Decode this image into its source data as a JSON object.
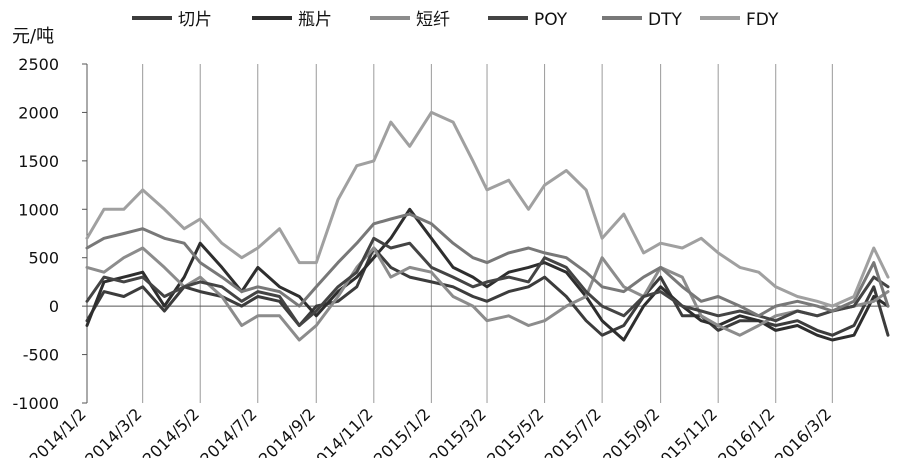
{
  "chart_data": {
    "type": "line",
    "title": "",
    "unit_label": "元/吨",
    "xlabel": "",
    "ylabel": "",
    "ylim": [
      -1000,
      2500
    ],
    "yticks": [
      -1000,
      -500,
      0,
      500,
      1000,
      1500,
      2000,
      2500
    ],
    "ytick_labels": [
      "-1000",
      "-500",
      "0",
      "500",
      "1000",
      "1500",
      "2000",
      "2500"
    ],
    "x_range": [
      "2014/1/2",
      "2016/4/30"
    ],
    "xtick_labels": [
      "2014/1/2",
      "2014/3/2",
      "2014/5/2",
      "2014/7/2",
      "2014/9/2",
      "2014/11/2",
      "2015/1/2",
      "2015/3/2",
      "2015/5/2",
      "2015/7/2",
      "2015/9/2",
      "2015/11/2",
      "2016/1/2",
      "2016/3/2"
    ],
    "grid": "vertical",
    "legend_position": "top",
    "series": [
      {
        "name": "切片",
        "color": "#3c3c3c",
        "points": [
          [
            "2014/1/2",
            -150
          ],
          [
            "2014/1/20",
            150
          ],
          [
            "2014/2/10",
            100
          ],
          [
            "2014/3/2",
            200
          ],
          [
            "2014/3/25",
            -50
          ],
          [
            "2014/4/15",
            200
          ],
          [
            "2014/5/2",
            150
          ],
          [
            "2014/5/25",
            100
          ],
          [
            "2014/6/15",
            0
          ],
          [
            "2014/7/2",
            100
          ],
          [
            "2014/7/25",
            50
          ],
          [
            "2014/8/15",
            -200
          ],
          [
            "2014/9/2",
            0
          ],
          [
            "2014/9/25",
            50
          ],
          [
            "2014/10/15",
            200
          ],
          [
            "2014/11/2",
            600
          ],
          [
            "2014/11/20",
            400
          ],
          [
            "2014/12/10",
            300
          ],
          [
            "2015/1/2",
            250
          ],
          [
            "2015/1/25",
            200
          ],
          [
            "2015/2/15",
            100
          ],
          [
            "2015/3/2",
            50
          ],
          [
            "2015/3/25",
            150
          ],
          [
            "2015/4/15",
            200
          ],
          [
            "2015/5/2",
            300
          ],
          [
            "2015/5/25",
            100
          ],
          [
            "2015/6/15",
            -150
          ],
          [
            "2015/7/2",
            -300
          ],
          [
            "2015/7/25",
            -200
          ],
          [
            "2015/8/15",
            100
          ],
          [
            "2015/9/2",
            300
          ],
          [
            "2015/9/25",
            -100
          ],
          [
            "2015/10/15",
            -100
          ],
          [
            "2015/11/2",
            -250
          ],
          [
            "2015/11/25",
            -150
          ],
          [
            "2015/12/15",
            -150
          ],
          [
            "2016/1/2",
            -200
          ],
          [
            "2016/1/25",
            -150
          ],
          [
            "2016/2/15",
            -250
          ],
          [
            "2016/3/2",
            -300
          ],
          [
            "2016/3/25",
            -200
          ],
          [
            "2016/4/15",
            200
          ],
          [
            "2016/4/30",
            -300
          ]
        ]
      },
      {
        "name": "瓶片",
        "color": "#2e2e2e",
        "points": [
          [
            "2014/1/2",
            -200
          ],
          [
            "2014/1/20",
            250
          ],
          [
            "2014/2/10",
            300
          ],
          [
            "2014/3/2",
            350
          ],
          [
            "2014/3/25",
            0
          ],
          [
            "2014/4/15",
            300
          ],
          [
            "2014/5/2",
            650
          ],
          [
            "2014/5/25",
            400
          ],
          [
            "2014/6/15",
            150
          ],
          [
            "2014/7/2",
            400
          ],
          [
            "2014/7/25",
            200
          ],
          [
            "2014/8/15",
            100
          ],
          [
            "2014/9/2",
            -100
          ],
          [
            "2014/9/25",
            150
          ],
          [
            "2014/10/15",
            300
          ],
          [
            "2014/11/2",
            500
          ],
          [
            "2014/11/20",
            700
          ],
          [
            "2014/12/10",
            1000
          ],
          [
            "2015/1/2",
            700
          ],
          [
            "2015/1/25",
            400
          ],
          [
            "2015/2/15",
            300
          ],
          [
            "2015/3/2",
            200
          ],
          [
            "2015/3/25",
            350
          ],
          [
            "2015/4/15",
            400
          ],
          [
            "2015/5/2",
            450
          ],
          [
            "2015/5/25",
            350
          ],
          [
            "2015/6/15",
            100
          ],
          [
            "2015/7/2",
            -150
          ],
          [
            "2015/7/25",
            -350
          ],
          [
            "2015/8/15",
            0
          ],
          [
            "2015/9/2",
            200
          ],
          [
            "2015/9/25",
            0
          ],
          [
            "2015/10/15",
            -150
          ],
          [
            "2015/11/2",
            -200
          ],
          [
            "2015/11/25",
            -100
          ],
          [
            "2015/12/15",
            -150
          ],
          [
            "2016/1/2",
            -250
          ],
          [
            "2016/1/25",
            -200
          ],
          [
            "2016/2/15",
            -300
          ],
          [
            "2016/3/2",
            -350
          ],
          [
            "2016/3/25",
            -300
          ],
          [
            "2016/4/15",
            100
          ],
          [
            "2016/4/30",
            0
          ]
        ]
      },
      {
        "name": "短纤",
        "color": "#8c8c8c",
        "points": [
          [
            "2014/1/2",
            400
          ],
          [
            "2014/1/20",
            350
          ],
          [
            "2014/2/10",
            500
          ],
          [
            "2014/3/2",
            600
          ],
          [
            "2014/3/25",
            400
          ],
          [
            "2014/4/15",
            200
          ],
          [
            "2014/5/2",
            300
          ],
          [
            "2014/5/25",
            100
          ],
          [
            "2014/6/15",
            -200
          ],
          [
            "2014/7/2",
            -100
          ],
          [
            "2014/7/25",
            -100
          ],
          [
            "2014/8/15",
            -350
          ],
          [
            "2014/9/2",
            -200
          ],
          [
            "2014/9/25",
            100
          ],
          [
            "2014/10/15",
            400
          ],
          [
            "2014/11/2",
            600
          ],
          [
            "2014/11/20",
            300
          ],
          [
            "2014/12/10",
            400
          ],
          [
            "2015/1/2",
            350
          ],
          [
            "2015/1/25",
            100
          ],
          [
            "2015/2/15",
            0
          ],
          [
            "2015/3/2",
            -150
          ],
          [
            "2015/3/25",
            -100
          ],
          [
            "2015/4/15",
            -200
          ],
          [
            "2015/5/2",
            -150
          ],
          [
            "2015/5/25",
            0
          ],
          [
            "2015/6/15",
            100
          ],
          [
            "2015/7/2",
            500
          ],
          [
            "2015/7/25",
            200
          ],
          [
            "2015/8/15",
            100
          ],
          [
            "2015/9/2",
            400
          ],
          [
            "2015/9/25",
            300
          ],
          [
            "2015/10/15",
            -100
          ],
          [
            "2015/11/2",
            -200
          ],
          [
            "2015/11/25",
            -300
          ],
          [
            "2015/12/15",
            -200
          ],
          [
            "2016/1/2",
            -100
          ],
          [
            "2016/1/25",
            -50
          ],
          [
            "2016/2/15",
            -100
          ],
          [
            "2016/3/2",
            -50
          ],
          [
            "2016/3/25",
            0
          ],
          [
            "2016/4/15",
            50
          ],
          [
            "2016/4/30",
            150
          ]
        ]
      },
      {
        "name": "POY",
        "color": "#444444",
        "points": [
          [
            "2014/1/2",
            50
          ],
          [
            "2014/1/20",
            300
          ],
          [
            "2014/2/10",
            250
          ],
          [
            "2014/3/2",
            300
          ],
          [
            "2014/3/25",
            100
          ],
          [
            "2014/4/15",
            200
          ],
          [
            "2014/5/2",
            250
          ],
          [
            "2014/5/25",
            200
          ],
          [
            "2014/6/15",
            50
          ],
          [
            "2014/7/2",
            150
          ],
          [
            "2014/7/25",
            100
          ],
          [
            "2014/8/15",
            -200
          ],
          [
            "2014/9/2",
            -50
          ],
          [
            "2014/9/25",
            200
          ],
          [
            "2014/10/15",
            350
          ],
          [
            "2014/11/2",
            700
          ],
          [
            "2014/11/20",
            600
          ],
          [
            "2014/12/10",
            650
          ],
          [
            "2015/1/2",
            400
          ],
          [
            "2015/1/25",
            300
          ],
          [
            "2015/2/15",
            200
          ],
          [
            "2015/3/2",
            250
          ],
          [
            "2015/3/25",
            300
          ],
          [
            "2015/4/15",
            250
          ],
          [
            "2015/5/2",
            500
          ],
          [
            "2015/5/25",
            400
          ],
          [
            "2015/6/15",
            150
          ],
          [
            "2015/7/2",
            0
          ],
          [
            "2015/7/25",
            -100
          ],
          [
            "2015/8/15",
            100
          ],
          [
            "2015/9/2",
            150
          ],
          [
            "2015/9/25",
            0
          ],
          [
            "2015/10/15",
            -50
          ],
          [
            "2015/11/2",
            -100
          ],
          [
            "2015/11/25",
            -50
          ],
          [
            "2015/12/15",
            -100
          ],
          [
            "2016/1/2",
            -150
          ],
          [
            "2016/1/25",
            -50
          ],
          [
            "2016/2/15",
            -100
          ],
          [
            "2016/3/2",
            -50
          ],
          [
            "2016/3/25",
            0
          ],
          [
            "2016/4/15",
            300
          ],
          [
            "2016/4/30",
            200
          ]
        ]
      },
      {
        "name": "DTY",
        "color": "#787878",
        "points": [
          [
            "2014/1/2",
            600
          ],
          [
            "2014/1/20",
            700
          ],
          [
            "2014/2/10",
            750
          ],
          [
            "2014/3/2",
            800
          ],
          [
            "2014/3/25",
            700
          ],
          [
            "2014/4/15",
            650
          ],
          [
            "2014/5/2",
            450
          ],
          [
            "2014/5/25",
            300
          ],
          [
            "2014/6/15",
            150
          ],
          [
            "2014/7/2",
            200
          ],
          [
            "2014/7/25",
            150
          ],
          [
            "2014/8/15",
            0
          ],
          [
            "2014/9/2",
            200
          ],
          [
            "2014/9/25",
            450
          ],
          [
            "2014/10/15",
            650
          ],
          [
            "2014/11/2",
            850
          ],
          [
            "2014/11/20",
            900
          ],
          [
            "2014/12/10",
            950
          ],
          [
            "2015/1/2",
            850
          ],
          [
            "2015/1/25",
            650
          ],
          [
            "2015/2/15",
            500
          ],
          [
            "2015/3/2",
            450
          ],
          [
            "2015/3/25",
            550
          ],
          [
            "2015/4/15",
            600
          ],
          [
            "2015/5/2",
            550
          ],
          [
            "2015/5/25",
            500
          ],
          [
            "2015/6/15",
            350
          ],
          [
            "2015/7/2",
            200
          ],
          [
            "2015/7/25",
            150
          ],
          [
            "2015/8/15",
            300
          ],
          [
            "2015/9/2",
            400
          ],
          [
            "2015/9/25",
            200
          ],
          [
            "2015/10/15",
            50
          ],
          [
            "2015/11/2",
            100
          ],
          [
            "2015/11/25",
            0
          ],
          [
            "2015/12/15",
            -100
          ],
          [
            "2016/1/2",
            0
          ],
          [
            "2016/1/25",
            50
          ],
          [
            "2016/2/15",
            0
          ],
          [
            "2016/3/2",
            -50
          ],
          [
            "2016/3/25",
            50
          ],
          [
            "2016/4/15",
            450
          ],
          [
            "2016/4/30",
            0
          ]
        ]
      },
      {
        "name": "FDY",
        "color": "#a0a0a0",
        "points": [
          [
            "2014/1/2",
            700
          ],
          [
            "2014/1/20",
            1000
          ],
          [
            "2014/2/10",
            1000
          ],
          [
            "2014/3/2",
            1200
          ],
          [
            "2014/3/25",
            1000
          ],
          [
            "2014/4/15",
            800
          ],
          [
            "2014/5/2",
            900
          ],
          [
            "2014/5/25",
            650
          ],
          [
            "2014/6/15",
            500
          ],
          [
            "2014/7/2",
            600
          ],
          [
            "2014/7/25",
            800
          ],
          [
            "2014/8/15",
            450
          ],
          [
            "2014/9/2",
            450
          ],
          [
            "2014/9/25",
            1100
          ],
          [
            "2014/10/15",
            1450
          ],
          [
            "2014/11/2",
            1500
          ],
          [
            "2014/11/20",
            1900
          ],
          [
            "2014/12/10",
            1650
          ],
          [
            "2015/1/2",
            2000
          ],
          [
            "2015/1/25",
            1900
          ],
          [
            "2015/2/15",
            1500
          ],
          [
            "2015/3/2",
            1200
          ],
          [
            "2015/3/25",
            1300
          ],
          [
            "2015/4/15",
            1000
          ],
          [
            "2015/5/2",
            1250
          ],
          [
            "2015/5/25",
            1400
          ],
          [
            "2015/6/15",
            1200
          ],
          [
            "2015/7/2",
            700
          ],
          [
            "2015/7/25",
            950
          ],
          [
            "2015/8/15",
            550
          ],
          [
            "2015/9/2",
            650
          ],
          [
            "2015/9/25",
            600
          ],
          [
            "2015/10/15",
            700
          ],
          [
            "2015/11/2",
            550
          ],
          [
            "2015/11/25",
            400
          ],
          [
            "2015/12/15",
            350
          ],
          [
            "2016/1/2",
            200
          ],
          [
            "2016/1/25",
            100
          ],
          [
            "2016/2/15",
            50
          ],
          [
            "2016/3/2",
            0
          ],
          [
            "2016/3/25",
            100
          ],
          [
            "2016/4/15",
            600
          ],
          [
            "2016/4/30",
            300
          ]
        ]
      }
    ]
  }
}
